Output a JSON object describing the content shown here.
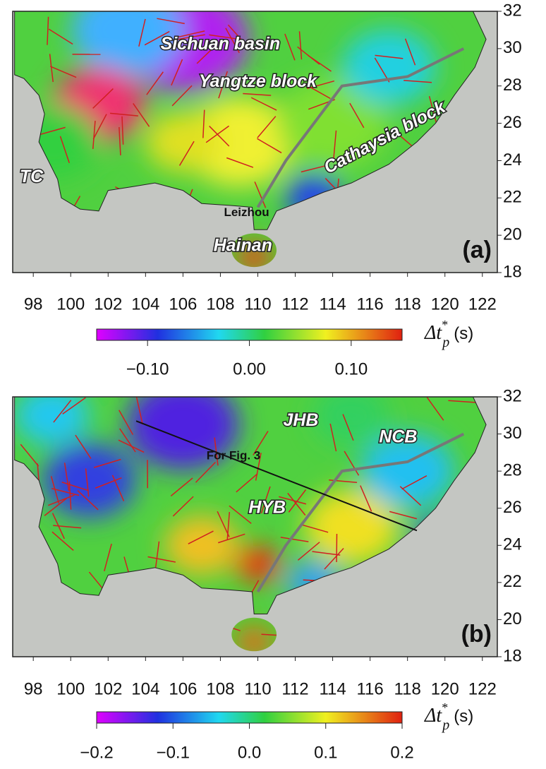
{
  "panels": [
    {
      "label": "(a)",
      "xlim": [
        96.9,
        122.8
      ],
      "ylim": [
        18,
        32
      ],
      "xticks": [
        98,
        100,
        102,
        104,
        106,
        108,
        110,
        112,
        114,
        116,
        118,
        120,
        122
      ],
      "yticks": [
        18,
        20,
        22,
        24,
        26,
        28,
        30,
        32
      ],
      "annotations": [
        "Sichuan basin",
        "Yangtze block",
        "Cathaysia block",
        "TC",
        "Leizhou",
        "Hainan"
      ],
      "colorbar": {
        "lim": [
          -0.15,
          0.15
        ],
        "ticks": [
          {
            "value": -0.1,
            "label": "−0.10"
          },
          {
            "value": 0,
            "label": "0.00"
          },
          {
            "value": 0.1,
            "label": "0.10"
          }
        ],
        "label": {
          "symbol": "Δt",
          "superscript": "*",
          "subscript": "p",
          "unit": "(s)"
        }
      }
    },
    {
      "label": "(b)",
      "xlim": [
        96.9,
        122.8
      ],
      "ylim": [
        18,
        32
      ],
      "xticks": [
        98,
        100,
        102,
        104,
        106,
        108,
        110,
        112,
        114,
        116,
        118,
        120,
        122
      ],
      "yticks": [
        18,
        20,
        22,
        24,
        26,
        28,
        30,
        32
      ],
      "annotations": [
        "JHB",
        "NCB",
        "For Fig. 3",
        "HYB"
      ],
      "colorbar": {
        "lim": [
          -0.2,
          0.2
        ],
        "ticks": [
          {
            "value": -0.2,
            "label": "−0.2"
          },
          {
            "value": -0.1,
            "label": "−0.1"
          },
          {
            "value": 0,
            "label": "0.0"
          },
          0.1,
          0.2
        ],
        "label": {
          "symbol": "Δt",
          "superscript": "*",
          "subscript": "p",
          "unit": "(s)"
        }
      }
    }
  ]
}
